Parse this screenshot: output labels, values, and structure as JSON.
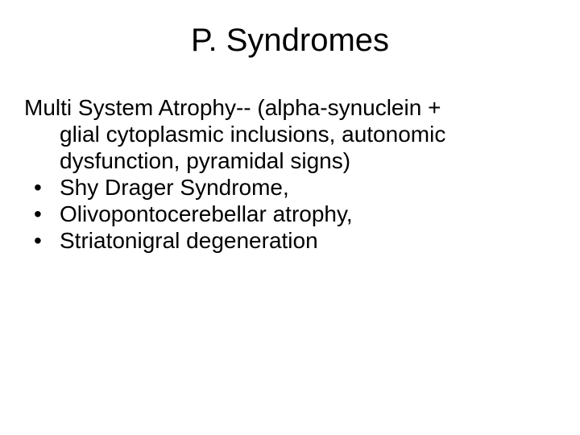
{
  "slide": {
    "title": "P. Syndromes",
    "intro": {
      "line1": "Multi System Atrophy-- (alpha-synuclein +",
      "line2": "glial cytoplasmic inclusions, autonomic",
      "line3": "dysfunction, pyramidal signs)"
    },
    "bullets": [
      "Shy Drager  Syndrome,",
      "Olivopontocerebellar atrophy,",
      "Striatonigral degeneration"
    ],
    "bullet_char": "•"
  },
  "style": {
    "background_color": "#ffffff",
    "text_color": "#000000",
    "title_fontsize": 40,
    "body_fontsize": 28,
    "font_family": "Arial"
  }
}
